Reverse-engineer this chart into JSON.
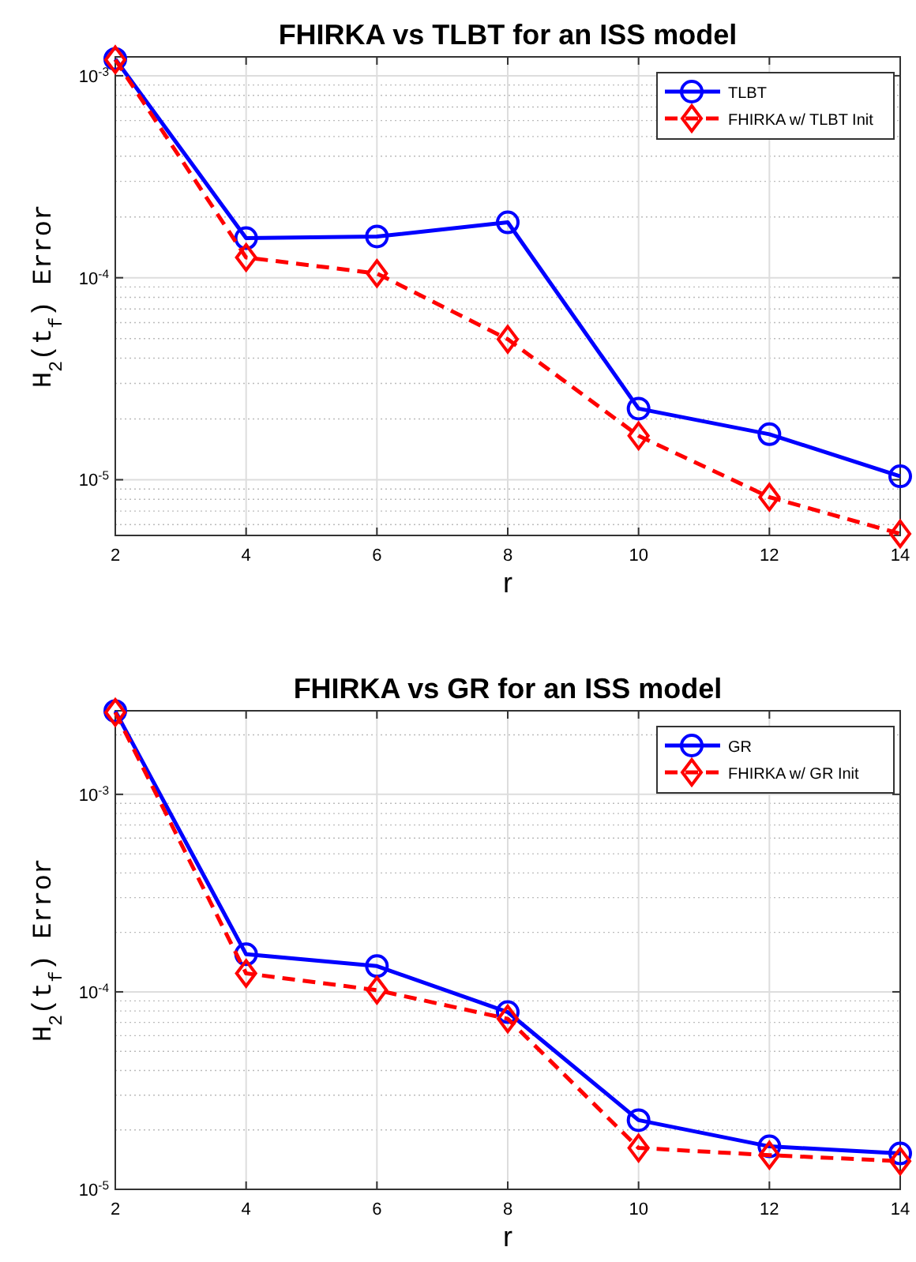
{
  "chart_data": [
    {
      "type": "line",
      "title": "FHIRKA vs TLBT for an ISS model",
      "xlabel": "r",
      "ylabel": "H$_{2}$(t$_{f}$) Error",
      "x": [
        2,
        4,
        6,
        8,
        10,
        12,
        14
      ],
      "series": [
        {
          "name": "TLBT",
          "color": "#0000ff",
          "marker": "circle",
          "line_style": "solid",
          "values": [
            0.00121,
            0.000157,
            0.00016,
            0.000188,
            2.25e-05,
            1.68e-05,
            1.04e-05
          ]
        },
        {
          "name": "FHIRKA w/ TLBT Init",
          "color": "#ff0000",
          "marker": "diamond",
          "line_style": "dashed",
          "values": [
            0.0012,
            0.000126,
            0.000105,
            4.96e-05,
            1.65e-05,
            8.2e-06,
            5.4e-06
          ]
        }
      ],
      "xlim": [
        2,
        14
      ],
      "xticks": [
        2,
        4,
        6,
        8,
        10,
        12,
        14
      ],
      "ylim": [
        5.3e-06,
        0.00124
      ],
      "yticks": [
        {
          "value": 1e-05,
          "label": "10$^{-5}$"
        },
        {
          "value": 0.0001,
          "label": "10$^{-4}$"
        },
        {
          "value": 0.001,
          "label": "10$^{-3}$"
        }
      ],
      "log": "y",
      "grid": true,
      "legend": "top right"
    },
    {
      "type": "line",
      "title": "FHIRKA vs GR for an ISS model",
      "xlabel": "r",
      "ylabel": "H$_{2}$(t$_{f}$) Error",
      "x": [
        2,
        4,
        6,
        8,
        10,
        12,
        14
      ],
      "series": [
        {
          "name": "GR",
          "color": "#0000ff",
          "marker": "circle",
          "line_style": "solid",
          "values": [
            0.00264,
            0.000155,
            0.000135,
            7.9e-05,
            2.24e-05,
            1.65e-05,
            1.52e-05
          ]
        },
        {
          "name": "FHIRKA w/ GR Init",
          "color": "#ff0000",
          "marker": "diamond",
          "line_style": "dashed",
          "values": [
            0.0026,
            0.000124,
            0.000102,
            7.3e-05,
            1.62e-05,
            1.49e-05,
            1.39e-05
          ]
        }
      ],
      "xlim": [
        2,
        14
      ],
      "xticks": [
        2,
        4,
        6,
        8,
        10,
        12,
        14
      ],
      "ylim": [
        1e-05,
        0.00265
      ],
      "yticks": [
        {
          "value": 1e-05,
          "label": "10$^{-5}$"
        },
        {
          "value": 0.0001,
          "label": "10$^{-4}$"
        },
        {
          "value": 0.001,
          "label": "10$^{-3}$"
        }
      ],
      "log": "y",
      "grid": true,
      "legend": "top right"
    }
  ]
}
